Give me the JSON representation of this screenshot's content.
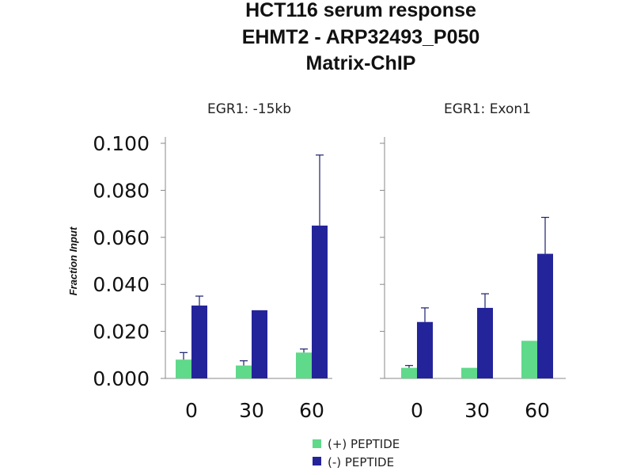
{
  "title_lines": [
    "HCT116 serum response",
    "EHMT2 - ARP32493_P050",
    "Matrix-ChIP"
  ],
  "colors": {
    "plus": "#5fd98a",
    "minus": "#24249a"
  },
  "chart_data": [
    {
      "type": "bar",
      "title": "EGR1: -15kb",
      "categories": [
        "0",
        "30",
        "60"
      ],
      "ylabel": "Fraction Input",
      "ylim": [
        0,
        0.1
      ],
      "yticks": [
        "0.000",
        "0.020",
        "0.040",
        "0.060",
        "0.080",
        "0.100"
      ],
      "series": [
        {
          "name": "(+) PEPTIDE",
          "values": [
            0.008,
            0.0055,
            0.011
          ],
          "errors": [
            0.003,
            0.002,
            0.0015
          ]
        },
        {
          "name": "(-) PEPTIDE",
          "values": [
            0.031,
            0.029,
            0.065
          ],
          "errors": [
            0.004,
            0,
            0.03
          ]
        }
      ]
    },
    {
      "type": "bar",
      "title": "EGR1: Exon1",
      "categories": [
        "0",
        "30",
        "60"
      ],
      "ylim": [
        0,
        0.1
      ],
      "series": [
        {
          "name": "(+) PEPTIDE",
          "values": [
            0.0045,
            0.0045,
            0.016
          ],
          "errors": [
            0.001,
            0,
            0
          ]
        },
        {
          "name": "(-) PEPTIDE",
          "values": [
            0.024,
            0.03,
            0.053
          ],
          "errors": [
            0.006,
            0.006,
            0.0155
          ]
        }
      ]
    }
  ],
  "legend": [
    {
      "label": "(+) PEPTIDE",
      "color": "#5fd98a"
    },
    {
      "label": "(-) PEPTIDE",
      "color": "#24249a"
    }
  ]
}
